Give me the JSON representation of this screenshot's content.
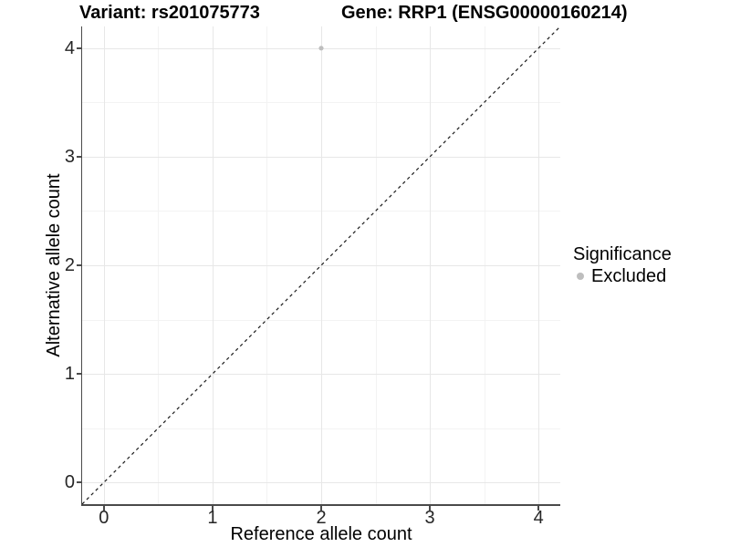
{
  "chart_data": {
    "type": "scatter",
    "title_parts": [
      "Variant: rs201075773",
      "Gene: RRP1 (ENSG00000160214)"
    ],
    "xlabel": "Reference allele count",
    "ylabel": "Alternative allele count",
    "xlim": [
      -0.2,
      4.2
    ],
    "ylim": [
      -0.2,
      4.2
    ],
    "xticks": [
      0,
      1,
      2,
      3,
      4
    ],
    "yticks": [
      0,
      1,
      2,
      3,
      4
    ],
    "minor_gridlines_x": [
      0.5,
      1.5,
      2.5,
      3.5
    ],
    "minor_gridlines_y": [
      0.5,
      1.5,
      2.5,
      3.5
    ],
    "grid": "major+minor",
    "series": [
      {
        "name": "Excluded",
        "marker": "circle",
        "color": "#bebebe",
        "points": [
          {
            "x": 2,
            "y": 4
          }
        ]
      }
    ],
    "reference_line": {
      "kind": "identity y=x",
      "style": "dashed",
      "color": "#1a1a1a",
      "x": [
        -0.2,
        4.2
      ],
      "y": [
        -0.2,
        4.2
      ]
    },
    "legend": {
      "position": "right",
      "title": "Significance",
      "entries": [
        {
          "label": "Excluded",
          "marker": "circle",
          "color": "#bebebe"
        }
      ]
    },
    "colors": {
      "background": "#ffffff",
      "point": "#bebebe",
      "grid_major": "#e7e7e7",
      "grid_minor": "#f3f3f3",
      "axis_line": "#4a4a4a",
      "tick_label": "#262626",
      "text": "#000000",
      "dashed_line": "#1a1a1a"
    }
  }
}
